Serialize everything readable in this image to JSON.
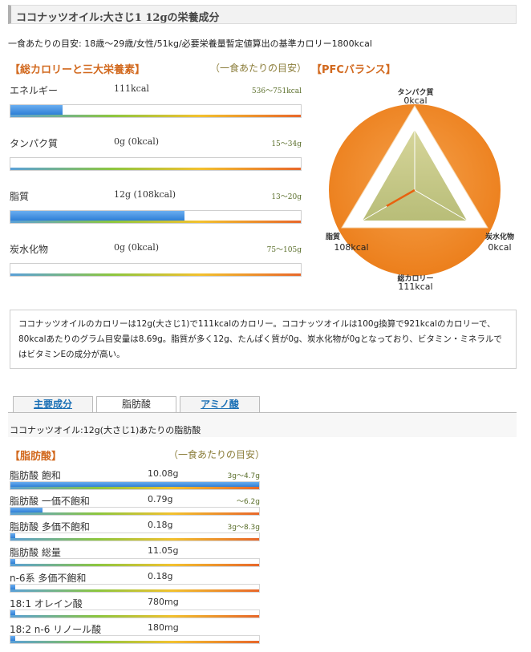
{
  "header": {
    "title": "ココナッツオイル:大さじ1 12gの栄養成分"
  },
  "basis_text": "一食あたりの目安: 18歳～29歳/女性/51kg/必要栄養量暫定値算出の基準カロリー1800kcal",
  "nutrients_section": {
    "heading": "【総カロリーと三大栄養素】",
    "subheading": "（一食あたりの目安）",
    "rows": [
      {
        "label": "エネルギー",
        "value": "111kcal",
        "range": "536～751kcal",
        "fill_pct": 0.18
      },
      {
        "label": "タンパク質",
        "value": "0g (0kcal)",
        "range": "15～34g",
        "fill_pct": 0.0
      },
      {
        "label": "脂質",
        "value": "12g (108kcal)",
        "range": "13～20g",
        "fill_pct": 0.6
      },
      {
        "label": "炭水化物",
        "value": "0g (0kcal)",
        "range": "75～105g",
        "fill_pct": 0.0
      }
    ]
  },
  "pfc": {
    "heading": "【PFCバランス】",
    "protein_label": "タンパク質",
    "protein_value": "0kcal",
    "carb_label": "炭水化物",
    "carb_value": "0kcal",
    "fat_label": "脂質",
    "fat_value": "108kcal",
    "total_label": "総カロリー",
    "total_value": "111kcal",
    "colors": {
      "circle": "#f08a24",
      "triangle_fill": "#c9cc8a",
      "marker": "#e8620f"
    }
  },
  "description": "ココナッツオイルのカロリーは12g(大さじ1)で111kcalのカロリー。ココナッツオイルは100g換算で921kcalのカロリーで、80kcalあたりのグラム目安量は8.69g。脂質が多く12g、たんぱく質が0g、炭水化物が0gとなっており、ビタミン・ミネラルではビタミンEの成分が高い。",
  "tabs": [
    {
      "label": "主要成分",
      "active": false
    },
    {
      "label": "脂肪酸",
      "active": true
    },
    {
      "label": "アミノ酸",
      "active": false
    }
  ],
  "fatty_acid_basis": "ココナッツオイル:12g(大さじ1)あたりの脂肪酸",
  "fatty_acids_section": {
    "heading": "【脂肪酸】",
    "subheading": "（一食あたりの目安）",
    "rows": [
      {
        "label": "脂肪酸 飽和",
        "value": "10.08g",
        "range": "3g～4.7g",
        "fill_pct": 1.0
      },
      {
        "label": "脂肪酸 一価不飽和",
        "value": "0.79g",
        "range": "～6.2g",
        "fill_pct": 0.13
      },
      {
        "label": "脂肪酸 多価不飽和",
        "value": "0.18g",
        "range": "3g～8.3g",
        "fill_pct": 0.02
      },
      {
        "label": "脂肪酸 総量",
        "value": "11.05g",
        "range": "",
        "fill_pct": 0.02
      },
      {
        "label": "n-6系 多価不飽和",
        "value": "0.18g",
        "range": "",
        "fill_pct": 0.02
      },
      {
        "label": "18:1 オレイン酸",
        "value": "780mg",
        "range": "",
        "fill_pct": 0.02
      },
      {
        "label": "18:2 n-6 リノール酸",
        "value": "180mg",
        "range": "",
        "fill_pct": 0.02
      }
    ]
  }
}
